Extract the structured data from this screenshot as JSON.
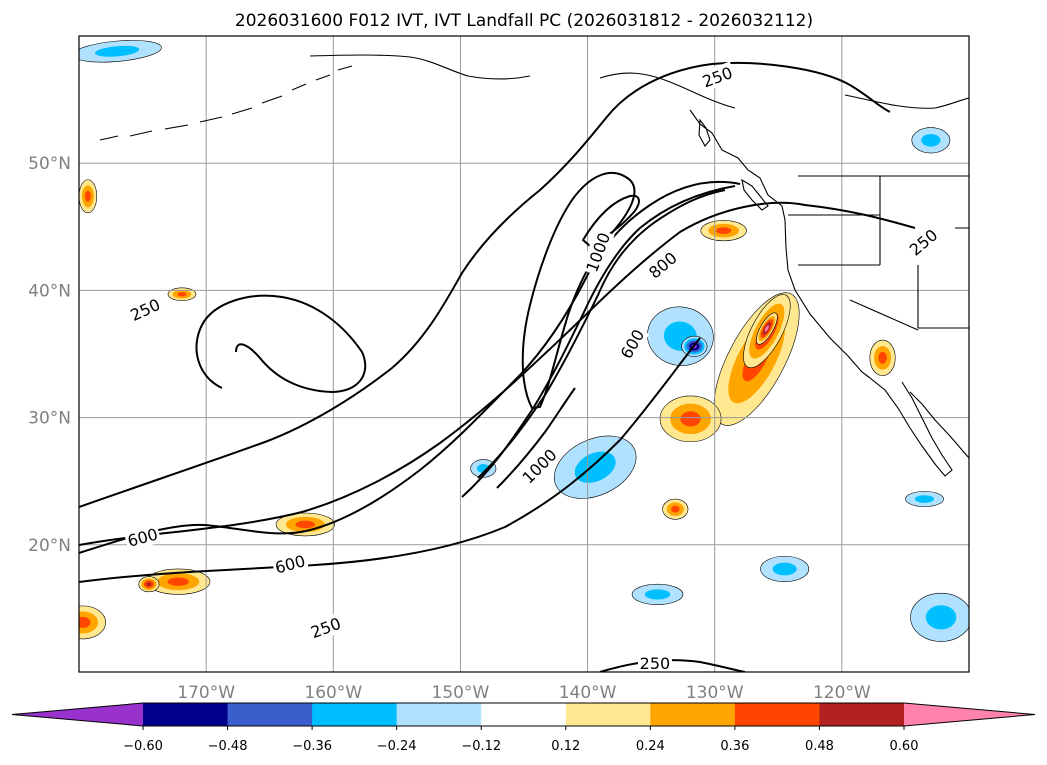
{
  "chart_data": {
    "type": "heatmap",
    "title": "2026031600 F012 IVT, IVT Landfall PC (2026031812 - 2026032112)",
    "projection": "PlateCarree",
    "lon_range": [
      -180,
      -110
    ],
    "lat_range": [
      10,
      60
    ],
    "x_ticks": [
      {
        "value": -170,
        "label": "170°W"
      },
      {
        "value": -160,
        "label": "160°W"
      },
      {
        "value": -150,
        "label": "150°W"
      },
      {
        "value": -140,
        "label": "140°W"
      },
      {
        "value": -130,
        "label": "130°W"
      },
      {
        "value": -120,
        "label": "120°W"
      }
    ],
    "y_ticks": [
      {
        "value": 20,
        "label": "20°N"
      },
      {
        "value": 30,
        "label": "30°N"
      },
      {
        "value": 40,
        "label": "40°N"
      },
      {
        "value": 50,
        "label": "50°N"
      }
    ],
    "grid": true,
    "filled_field": "IVT Landfall PC",
    "contour_field": "IVT",
    "contour_levels": [
      250,
      600,
      800,
      1000
    ],
    "contour_labels": [
      {
        "text": "250",
        "lon": -174.8,
        "lat": 38.5,
        "angle": -25
      },
      {
        "text": "250",
        "lon": -129.8,
        "lat": 56.8,
        "angle": -20
      },
      {
        "text": "250",
        "lon": -113.6,
        "lat": 43.8,
        "angle": -40
      },
      {
        "text": "250",
        "lon": -160.6,
        "lat": 13.5,
        "angle": -20
      },
      {
        "text": "250",
        "lon": -134.7,
        "lat": 10.7,
        "angle": 0
      },
      {
        "text": "600",
        "lon": -175.0,
        "lat": 20.6,
        "angle": -15
      },
      {
        "text": "600",
        "lon": -163.4,
        "lat": 18.5,
        "angle": -15
      },
      {
        "text": "600",
        "lon": -136.5,
        "lat": 35.8,
        "angle": -60
      },
      {
        "text": "800",
        "lon": -134.1,
        "lat": 42.0,
        "angle": -40
      },
      {
        "text": "1000",
        "lon": -139.2,
        "lat": 43.0,
        "angle": -70
      },
      {
        "text": "1000",
        "lon": -143.8,
        "lat": 26.2,
        "angle": -45
      }
    ],
    "colorbar": {
      "ticks": [
        -0.6,
        -0.48,
        -0.36,
        -0.24,
        -0.12,
        0.12,
        0.24,
        0.36,
        0.48,
        0.6
      ],
      "tick_labels": [
        "−0.60",
        "−0.48",
        "−0.36",
        "−0.24",
        "−0.12",
        "0.12",
        "0.24",
        "0.36",
        "0.48",
        "0.60"
      ],
      "colors": [
        "#9932cc",
        "#00008b",
        "#3a5fcd",
        "#00bfff",
        "#b0e2ff",
        "#ffffff",
        "#ffe88f",
        "#ffa500",
        "#ff4500",
        "#b22222",
        "#ff82ab"
      ],
      "extend": "both",
      "orientation": "horizontal"
    },
    "features": [
      {
        "name": "atmospheric-river",
        "sign": "negative",
        "lon": -139.4,
        "lat": 26.1,
        "rx": 3.4,
        "ry": 2.2,
        "rot": -25,
        "level": 2
      },
      {
        "name": "anomaly",
        "sign": "positive",
        "lon": -126.7,
        "lat": 34.6,
        "rx": 2.2,
        "ry": 5.8,
        "rot": 28,
        "level": 3
      },
      {
        "name": "anomaly",
        "sign": "positive",
        "lon": -125.9,
        "lat": 36.8,
        "rx": 1.2,
        "ry": 3.2,
        "rot": 28,
        "level": 4
      },
      {
        "name": "anomaly",
        "sign": "positive",
        "lon": -125.9,
        "lat": 37.0,
        "rx": 0.5,
        "ry": 1.4,
        "rot": 30,
        "level": 5
      },
      {
        "name": "anomaly",
        "sign": "negative",
        "lon": -132.7,
        "lat": 36.4,
        "rx": 2.6,
        "ry": 2.3,
        "rot": 10,
        "level": 2
      },
      {
        "name": "anomaly",
        "sign": "negative",
        "lon": -131.6,
        "lat": 35.6,
        "rx": 1.0,
        "ry": 0.8,
        "rot": 0,
        "level": 5
      },
      {
        "name": "anomaly",
        "sign": "positive",
        "lon": -131.9,
        "lat": 29.9,
        "rx": 2.4,
        "ry": 1.8,
        "rot": 0,
        "level": 3
      },
      {
        "name": "anomaly",
        "sign": "positive",
        "lon": -133.1,
        "lat": 22.8,
        "rx": 1.0,
        "ry": 0.8,
        "rot": 0,
        "level": 3
      },
      {
        "name": "anomaly",
        "sign": "positive",
        "lon": -172.2,
        "lat": 17.1,
        "rx": 2.5,
        "ry": 1.0,
        "rot": 0,
        "level": 3
      },
      {
        "name": "anomaly",
        "sign": "positive",
        "lon": -174.5,
        "lat": 16.9,
        "rx": 0.8,
        "ry": 0.6,
        "rot": 0,
        "level": 4
      },
      {
        "name": "anomaly",
        "sign": "positive",
        "lon": -162.2,
        "lat": 21.6,
        "rx": 2.3,
        "ry": 0.9,
        "rot": 0,
        "level": 3
      },
      {
        "name": "anomaly",
        "sign": "positive",
        "lon": -179.7,
        "lat": 13.9,
        "rx": 1.8,
        "ry": 1.3,
        "rot": 0,
        "level": 3
      },
      {
        "name": "anomaly",
        "sign": "positive",
        "lon": -129.3,
        "lat": 44.7,
        "rx": 1.8,
        "ry": 0.8,
        "rot": 0,
        "level": 3
      },
      {
        "name": "anomaly",
        "sign": "positive",
        "lon": -116.8,
        "lat": 34.7,
        "rx": 1.0,
        "ry": 1.4,
        "rot": 0,
        "level": 3
      },
      {
        "name": "anomaly",
        "sign": "positive",
        "lon": -171.9,
        "lat": 39.7,
        "rx": 1.1,
        "ry": 0.5,
        "rot": 0,
        "level": 3
      },
      {
        "name": "anomaly",
        "sign": "positive",
        "lon": -179.3,
        "lat": 47.4,
        "rx": 0.7,
        "ry": 1.3,
        "rot": 0,
        "level": 3
      },
      {
        "name": "anomaly",
        "sign": "negative",
        "lon": -124.5,
        "lat": 18.1,
        "rx": 1.9,
        "ry": 1.0,
        "rot": 0,
        "level": 2
      },
      {
        "name": "anomaly",
        "sign": "negative",
        "lon": -112.2,
        "lat": 14.3,
        "rx": 2.4,
        "ry": 1.9,
        "rot": 0,
        "level": 2
      },
      {
        "name": "anomaly",
        "sign": "negative",
        "lon": -177.0,
        "lat": 58.8,
        "rx": 3.5,
        "ry": 0.8,
        "rot": -5,
        "level": 2
      },
      {
        "name": "anomaly",
        "sign": "negative",
        "lon": -113.0,
        "lat": 51.8,
        "rx": 1.5,
        "ry": 1.0,
        "rot": 0,
        "level": 2
      },
      {
        "name": "anomaly",
        "sign": "negative",
        "lon": -113.5,
        "lat": 23.6,
        "rx": 1.5,
        "ry": 0.6,
        "rot": 0,
        "level": 2
      },
      {
        "name": "anomaly",
        "sign": "negative",
        "lon": -134.5,
        "lat": 16.1,
        "rx": 2.0,
        "ry": 0.8,
        "rot": 0,
        "level": 2
      },
      {
        "name": "anomaly",
        "sign": "negative",
        "lon": -148.2,
        "lat": 26.0,
        "rx": 1.0,
        "ry": 0.7,
        "rot": 0,
        "level": 2
      }
    ]
  }
}
